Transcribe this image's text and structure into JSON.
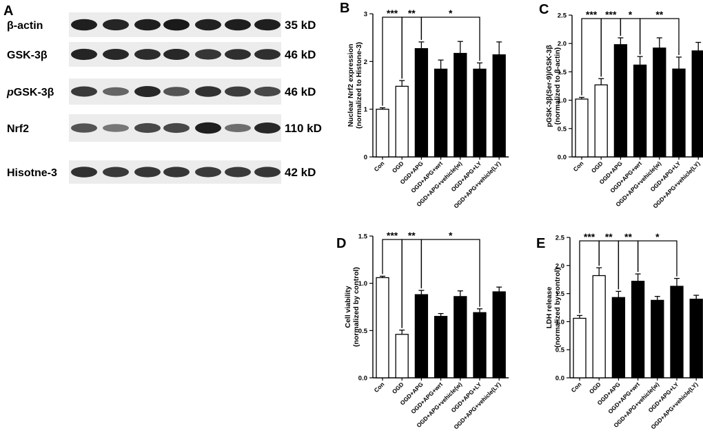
{
  "panel_a": {
    "letter": "A",
    "rows": [
      {
        "label": "β-actin",
        "kd": "35 kD",
        "bands": [
          0.85,
          0.82,
          0.85,
          0.88,
          0.84,
          0.86,
          0.85
        ]
      },
      {
        "label": "GSK-3β",
        "kd": "46 kD",
        "bands": [
          0.82,
          0.8,
          0.78,
          0.8,
          0.72,
          0.76,
          0.76
        ]
      },
      {
        "label_prefix": "p",
        "label": "GSK-3β",
        "kd": "46 kD",
        "bands": [
          0.7,
          0.45,
          0.8,
          0.55,
          0.75,
          0.68,
          0.62
        ]
      },
      {
        "label": "Nrf2",
        "kd": "110 kD",
        "bands": [
          0.55,
          0.35,
          0.62,
          0.62,
          0.85,
          0.4,
          0.8
        ]
      },
      {
        "label": "Hisotne-3",
        "kd": "42 kD",
        "bands": [
          0.75,
          0.7,
          0.72,
          0.72,
          0.7,
          0.7,
          0.72
        ]
      }
    ]
  },
  "chart_data": [
    {
      "panel": "B",
      "type": "bar",
      "categories": [
        "Con",
        "OGD",
        "OGD+APG",
        "OGD+APG+wrt",
        "OGD+APG+vehicle(w)",
        "OGD+APG+LY",
        "OGD+APG+vehicle(LY)"
      ],
      "values": [
        1.0,
        1.48,
        2.27,
        1.84,
        2.17,
        1.84,
        2.14
      ],
      "errors": [
        0.03,
        0.12,
        0.14,
        0.19,
        0.25,
        0.13,
        0.27
      ],
      "fills": [
        "open",
        "open",
        "solid",
        "solid",
        "solid",
        "solid",
        "solid"
      ],
      "ylabel": [
        "Nuclear Nrf2 expression",
        "(normalized to Histone-3)"
      ],
      "ylim": [
        0,
        3
      ],
      "yticks": [
        0,
        1,
        2,
        3
      ],
      "ytick_labels": [
        "0",
        "1",
        "2",
        "3"
      ],
      "annotations": [
        {
          "label": "***",
          "from": 0,
          "to": 1
        },
        {
          "label": "**",
          "from": 1,
          "to": 2
        },
        {
          "label": "*",
          "from": 2,
          "to": 5
        }
      ]
    },
    {
      "panel": "C",
      "type": "bar",
      "categories": [
        "Con",
        "OGD",
        "OGD+APG",
        "OGD+APG+wrt",
        "OGD+APG+vehicle(w)",
        "OGD+APG+LY",
        "OGD+APG+vehicle(LY)"
      ],
      "values": [
        1.02,
        1.27,
        1.98,
        1.62,
        1.92,
        1.55,
        1.87
      ],
      "errors": [
        0.03,
        0.11,
        0.12,
        0.15,
        0.18,
        0.21,
        0.15
      ],
      "fills": [
        "open",
        "open",
        "solid",
        "solid",
        "solid",
        "solid",
        "solid"
      ],
      "ylabel": [
        "pGSK-3β(Ser-9)/GSK-3β",
        "(normalized to β-actin)"
      ],
      "ylim": [
        0,
        2.5
      ],
      "yticks": [
        0,
        0.5,
        1.0,
        1.5,
        2.0,
        2.5
      ],
      "ytick_labels": [
        "0.0",
        "0.5",
        "1.0",
        "1.5",
        "2.0",
        "2.5"
      ],
      "annotations": [
        {
          "label": "***",
          "from": 0,
          "to": 1
        },
        {
          "label": "***",
          "from": 1,
          "to": 2
        },
        {
          "label": "*",
          "from": 2,
          "to": 3
        },
        {
          "label": "**",
          "from": 3,
          "to": 5
        }
      ]
    },
    {
      "panel": "D",
      "type": "bar",
      "categories": [
        "Con",
        "OGD",
        "OGD+APG",
        "OGD+APG+wrt",
        "OGD+APG+vehicle(w)",
        "OGD+APG+LY",
        "OGD+APG+vehicle(LY)"
      ],
      "values": [
        1.06,
        0.46,
        0.88,
        0.65,
        0.86,
        0.69,
        0.91
      ],
      "errors": [
        0.015,
        0.045,
        0.045,
        0.03,
        0.06,
        0.04,
        0.05
      ],
      "fills": [
        "open",
        "open",
        "solid",
        "solid",
        "solid",
        "solid",
        "solid"
      ],
      "ylabel": [
        "Cell viability",
        "(normalized by control)"
      ],
      "ylim": [
        0,
        1.5
      ],
      "yticks": [
        0,
        0.5,
        1.0,
        1.5
      ],
      "ytick_labels": [
        "0.0",
        "0.5",
        "1.0",
        "1.5"
      ],
      "annotations": [
        {
          "label": "***",
          "from": 0,
          "to": 1
        },
        {
          "label": "**",
          "from": 1,
          "to": 2
        },
        {
          "label": "*",
          "from": 2,
          "to": 5
        }
      ]
    },
    {
      "panel": "E",
      "type": "bar",
      "categories": [
        "Con",
        "OGD",
        "OGD+APG",
        "OGD+APG+wrt",
        "OGD+APG+vehicle(w)",
        "OGD+APG+LY",
        "OGD+APG+vehicle(LY)"
      ],
      "values": [
        1.06,
        1.82,
        1.43,
        1.72,
        1.38,
        1.63,
        1.4
      ],
      "errors": [
        0.05,
        0.14,
        0.11,
        0.13,
        0.07,
        0.14,
        0.07
      ],
      "fills": [
        "open",
        "open",
        "solid",
        "solid",
        "solid",
        "solid",
        "solid"
      ],
      "ylabel": [
        "LDH release",
        "(normalized by control)"
      ],
      "ylim": [
        0,
        2.5
      ],
      "yticks": [
        0,
        0.5,
        1.0,
        1.5,
        2.0,
        2.5
      ],
      "ytick_labels": [
        "0.0",
        "0.5",
        "1.0",
        "1.5",
        "2.0",
        "2.5"
      ],
      "annotations": [
        {
          "label": "***",
          "from": 0,
          "to": 1
        },
        {
          "label": "**",
          "from": 1,
          "to": 2
        },
        {
          "label": "**",
          "from": 2,
          "to": 3
        },
        {
          "label": "*",
          "from": 3,
          "to": 5
        }
      ]
    }
  ]
}
